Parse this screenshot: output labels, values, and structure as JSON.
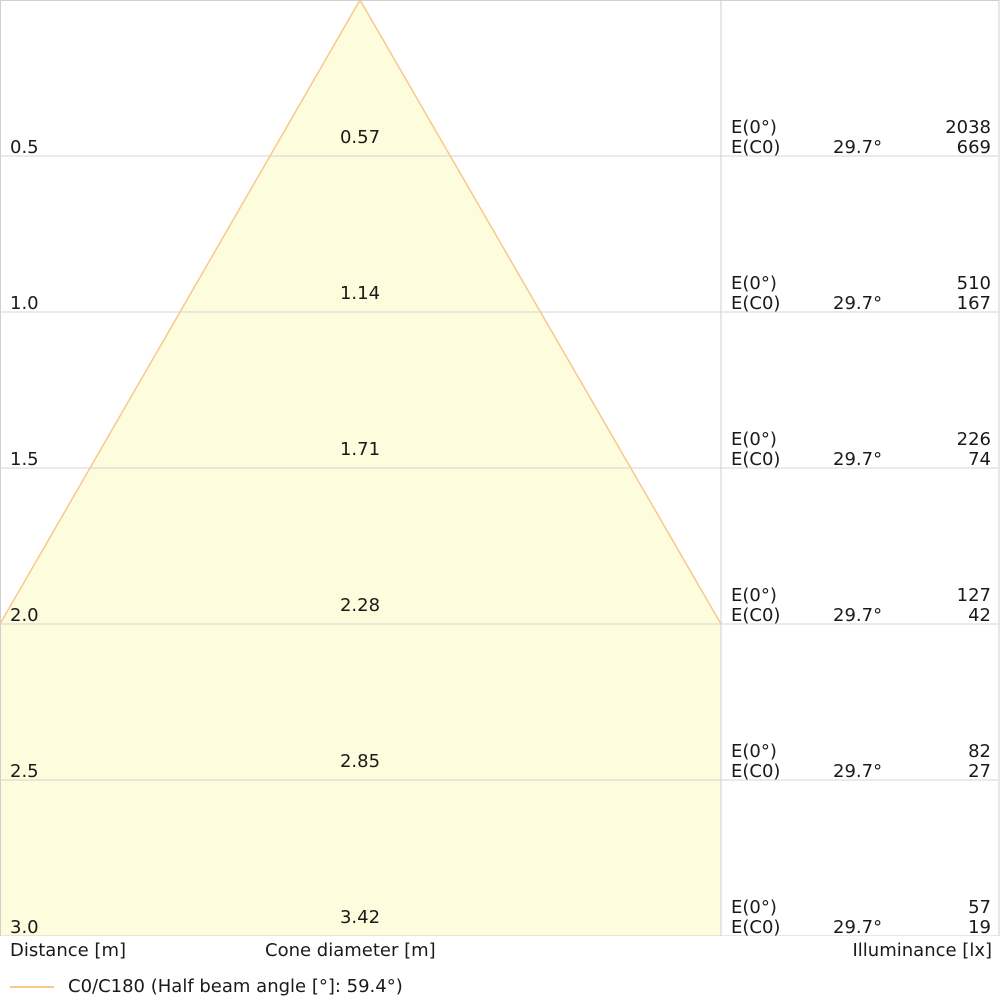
{
  "chart_data": {
    "type": "cone",
    "x_unit_label": "Distance [m]",
    "diameter_label": "Cone diameter [m]",
    "illuminance_label": "Illuminance [lx]",
    "center_label": "E(0°)",
    "c0_label": "E(C0)",
    "legend": {
      "label": "C0/C180 (Half beam angle [°]: 59.4°)",
      "color": "#f7c98b"
    },
    "fill_color": "#fdfcdc",
    "rows": [
      {
        "distance": "0.5",
        "diameter": "0.57",
        "e_center": "2038",
        "angle": "29.7°",
        "e_c0": "669"
      },
      {
        "distance": "1.0",
        "diameter": "1.14",
        "e_center": "510",
        "angle": "29.7°",
        "e_c0": "167"
      },
      {
        "distance": "1.5",
        "diameter": "1.71",
        "e_center": "226",
        "angle": "29.7°",
        "e_c0": "74"
      },
      {
        "distance": "2.0",
        "diameter": "2.28",
        "e_center": "127",
        "angle": "29.7°",
        "e_c0": "42"
      },
      {
        "distance": "2.5",
        "diameter": "2.85",
        "e_center": "82",
        "angle": "29.7°",
        "e_c0": "27"
      },
      {
        "distance": "3.0",
        "diameter": "3.42",
        "e_center": "57",
        "angle": "29.7°",
        "e_c0": "19"
      }
    ]
  }
}
